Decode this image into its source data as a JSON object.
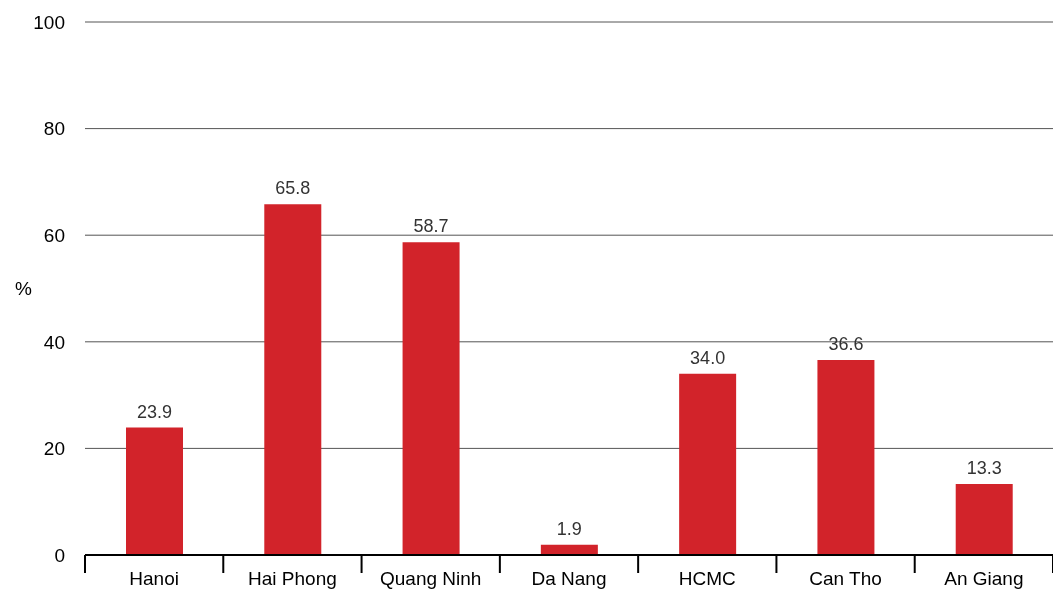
{
  "chart_data": {
    "type": "bar",
    "ylabel": "%",
    "categories": [
      "Hanoi",
      "Hai Phong",
      "Quang Ninh",
      "Da Nang",
      "HCMC",
      "Can Tho",
      "An Giang"
    ],
    "values": [
      23.9,
      65.8,
      58.7,
      1.9,
      34.0,
      36.6,
      13.3
    ],
    "value_labels": [
      "23.9",
      "65.8",
      "58.7",
      "1.9",
      "34.0",
      "36.6",
      "13.3"
    ],
    "color": "#d2232a",
    "ylim": [
      0,
      100
    ],
    "yticks": [
      0,
      20,
      40,
      60,
      80,
      100
    ],
    "grid": "y"
  }
}
